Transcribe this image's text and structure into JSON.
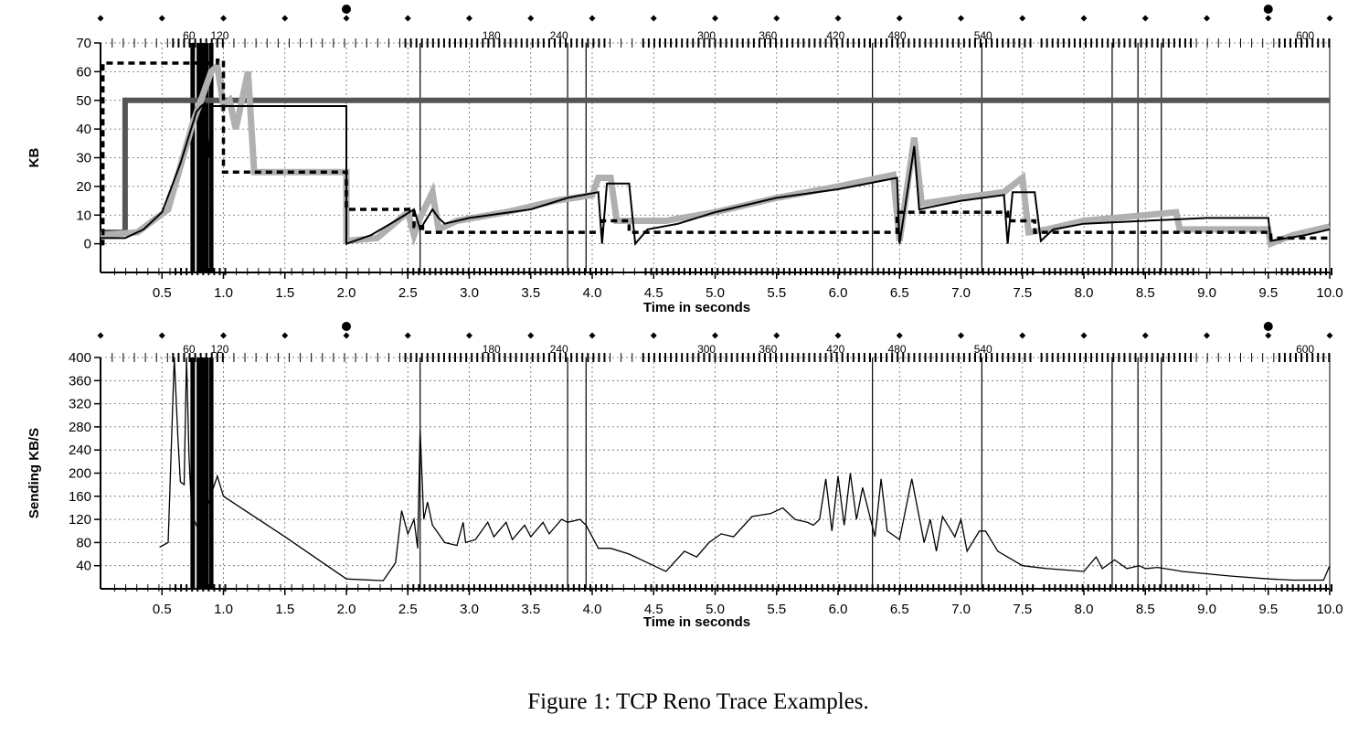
{
  "caption": "Figure 1: TCP Reno Trace Examples.",
  "colors": {
    "cwnd": "#000000",
    "recv_window": "#555555",
    "bytes_in_flight": "#b0b0b0",
    "ssthresh": "#000000",
    "rate": "#000000"
  },
  "chart_data": [
    {
      "type": "line",
      "ylabel": "KB",
      "xlabel": "Time in seconds",
      "xlim": [
        0,
        10
      ],
      "ylim": [
        -10,
        70
      ],
      "grid": true,
      "x_ticks": [
        0.5,
        1.0,
        1.5,
        2.0,
        2.5,
        3.0,
        3.5,
        4.0,
        4.5,
        5.0,
        5.5,
        6.0,
        6.5,
        7.0,
        7.5,
        8.0,
        8.5,
        9.0,
        9.5,
        10.0
      ],
      "x_tick_labels": [
        "0.5",
        "1.0",
        "1.5",
        "2.0",
        "2.5",
        "3.0",
        "3.5",
        "4.0",
        "4.5",
        "5.0",
        "5.5",
        "6.0",
        "6.5",
        "7.0",
        "7.5",
        "8.0",
        "8.5",
        "9.0",
        "9.5",
        "10.0"
      ],
      "y_ticks": [
        0,
        10,
        20,
        30,
        40,
        50,
        60,
        70
      ],
      "y_tick_labels": [
        "0",
        "10",
        "20",
        "30",
        "40",
        "50",
        "60",
        "70"
      ],
      "seq_labels": [
        {
          "x": 0.72,
          "text": "60"
        },
        {
          "x": 0.97,
          "text": "120"
        },
        {
          "x": 3.18,
          "text": "180"
        },
        {
          "x": 3.73,
          "text": "240"
        },
        {
          "x": 4.93,
          "text": "300"
        },
        {
          "x": 5.43,
          "text": "360"
        },
        {
          "x": 5.98,
          "text": "420"
        },
        {
          "x": 6.48,
          "text": "480"
        },
        {
          "x": 7.18,
          "text": "540"
        },
        {
          "x": 9.8,
          "text": "600"
        }
      ],
      "timeout_markers": [
        2.0,
        9.5
      ],
      "loss_lines": [
        0.75,
        0.8,
        0.83,
        0.86,
        0.9,
        2.6,
        3.8,
        3.95,
        6.28,
        7.17,
        8.23,
        8.44,
        8.63
      ],
      "series": [
        {
          "id": "recv_window",
          "x": [
            0,
            0.2,
            0.2,
            10
          ],
          "y": [
            4,
            4,
            50,
            50
          ]
        },
        {
          "id": "bytes_in_flight",
          "x": [
            0,
            0.3,
            0.55,
            0.75,
            0.9,
            0.95,
            1.0,
            1.05,
            1.1,
            1.2,
            1.25,
            2.0,
            2.0,
            2.25,
            2.5,
            2.55,
            2.6,
            2.7,
            2.75,
            2.9,
            3.3,
            3.7,
            4.0,
            4.05,
            4.15,
            4.2,
            4.3,
            4.6,
            5.0,
            5.5,
            6.0,
            6.45,
            6.5,
            6.62,
            6.68,
            7.0,
            7.35,
            7.5,
            7.55,
            7.7,
            8.0,
            8.5,
            8.75,
            8.78,
            9.0,
            9.5,
            9.52,
            9.7,
            10.0
          ],
          "y": [
            3,
            4,
            12,
            42,
            60,
            62,
            48,
            50,
            40,
            60,
            25,
            25,
            1,
            2,
            11,
            3,
            9,
            18,
            5,
            8,
            11,
            15,
            17,
            23,
            23,
            8,
            8,
            8,
            11,
            16,
            20,
            24,
            1,
            37,
            14,
            16,
            18,
            23,
            4,
            5,
            8,
            10,
            11,
            5,
            5,
            5,
            0,
            3,
            6
          ]
        },
        {
          "id": "cwnd",
          "x": [
            0,
            0.2,
            0.35,
            0.5,
            0.65,
            0.78,
            0.82,
            0.85,
            0.88,
            0.9,
            1.05,
            1.1,
            1.3,
            2.0,
            2.0,
            2.2,
            2.4,
            2.55,
            2.6,
            2.7,
            2.75,
            2.8,
            3.0,
            3.5,
            3.8,
            4.05,
            4.08,
            4.12,
            4.3,
            4.35,
            4.45,
            4.7,
            5.0,
            5.5,
            6.0,
            6.48,
            6.5,
            6.62,
            6.66,
            7.0,
            7.35,
            7.38,
            7.42,
            7.6,
            7.65,
            7.75,
            8.0,
            8.5,
            9.0,
            9.5,
            9.52,
            9.8,
            10.0
          ],
          "y": [
            2,
            2,
            5,
            11,
            28,
            46,
            48,
            49,
            30,
            48,
            48,
            48,
            48,
            48,
            0,
            3,
            8,
            12,
            5,
            12,
            9,
            7,
            9,
            12,
            16,
            18,
            0,
            21,
            21,
            0,
            5,
            7,
            11,
            16,
            19,
            23,
            0,
            34,
            12,
            15,
            17,
            0,
            18,
            18,
            1,
            5,
            7,
            8,
            9,
            9,
            1,
            3,
            5
          ]
        },
        {
          "id": "ssthresh",
          "style": "dashed",
          "x": [
            0,
            0.02,
            0.02,
            0.95,
            0.95,
            1.0,
            1.0,
            1.03,
            1.03,
            2.0,
            2.0,
            2.55,
            2.55,
            2.62,
            2.62,
            4.08,
            4.08,
            4.3,
            4.3,
            6.48,
            6.48,
            7.38,
            7.38,
            7.6,
            7.6,
            9.52,
            9.52,
            10.0
          ],
          "y": [
            0,
            0,
            63,
            63,
            64,
            64,
            25,
            25,
            25,
            25,
            12,
            12,
            6,
            6,
            4,
            4,
            8,
            8,
            4,
            4,
            11,
            11,
            8,
            8,
            4,
            4,
            2,
            2
          ]
        }
      ]
    },
    {
      "type": "line",
      "ylabel": "Sending KB/S",
      "xlabel": "Time in seconds",
      "xlim": [
        0,
        10
      ],
      "ylim": [
        0,
        400
      ],
      "grid": true,
      "x_ticks": [
        0.5,
        1.0,
        1.5,
        2.0,
        2.5,
        3.0,
        3.5,
        4.0,
        4.5,
        5.0,
        5.5,
        6.0,
        6.5,
        7.0,
        7.5,
        8.0,
        8.5,
        9.0,
        9.5,
        10.0
      ],
      "x_tick_labels": [
        "0.5",
        "1.0",
        "1.5",
        "2.0",
        "2.5",
        "3.0",
        "3.5",
        "4.0",
        "4.5",
        "5.0",
        "5.5",
        "6.0",
        "6.5",
        "7.0",
        "7.5",
        "8.0",
        "8.5",
        "9.0",
        "9.5",
        "10.0"
      ],
      "y_ticks": [
        40,
        80,
        120,
        160,
        200,
        240,
        280,
        320,
        360,
        400
      ],
      "y_tick_labels": [
        "40",
        "80",
        "120",
        "160",
        "200",
        "240",
        "280",
        "320",
        "360",
        "400"
      ],
      "seq_labels": [
        {
          "x": 0.72,
          "text": "60"
        },
        {
          "x": 0.97,
          "text": "120"
        },
        {
          "x": 3.18,
          "text": "180"
        },
        {
          "x": 3.73,
          "text": "240"
        },
        {
          "x": 4.93,
          "text": "300"
        },
        {
          "x": 5.43,
          "text": "360"
        },
        {
          "x": 5.98,
          "text": "420"
        },
        {
          "x": 6.48,
          "text": "480"
        },
        {
          "x": 7.18,
          "text": "540"
        },
        {
          "x": 9.8,
          "text": "600"
        }
      ],
      "timeout_markers": [
        2.0,
        9.5
      ],
      "loss_lines": [
        0.75,
        0.8,
        0.83,
        0.86,
        0.9,
        2.6,
        3.8,
        3.95,
        6.28,
        7.17,
        8.23,
        8.44,
        8.63
      ],
      "series": [
        {
          "id": "rate",
          "x": [
            0.48,
            0.55,
            0.6,
            0.63,
            0.65,
            0.68,
            0.7,
            0.72,
            0.74,
            0.76,
            0.8,
            0.95,
            1.0,
            1.5,
            2.0,
            2.3,
            2.4,
            2.45,
            2.5,
            2.55,
            2.58,
            2.6,
            2.63,
            2.66,
            2.7,
            2.8,
            2.9,
            2.95,
            2.97,
            3.05,
            3.15,
            3.2,
            3.3,
            3.35,
            3.45,
            3.5,
            3.6,
            3.65,
            3.75,
            3.8,
            3.9,
            3.95,
            4.05,
            4.15,
            4.3,
            4.5,
            4.6,
            4.75,
            4.85,
            4.95,
            5.05,
            5.15,
            5.3,
            5.45,
            5.55,
            5.65,
            5.75,
            5.8,
            5.85,
            5.9,
            5.95,
            6.0,
            6.05,
            6.1,
            6.15,
            6.2,
            6.3,
            6.35,
            6.4,
            6.5,
            6.6,
            6.7,
            6.75,
            6.8,
            6.85,
            6.95,
            7.0,
            7.05,
            7.15,
            7.2,
            7.3,
            7.5,
            7.7,
            8.0,
            8.1,
            8.15,
            8.25,
            8.35,
            8.45,
            8.5,
            8.6,
            8.8,
            9.0,
            9.2,
            9.5,
            9.7,
            9.95,
            10.0
          ],
          "y": [
            72,
            80,
            400,
            260,
            185,
            180,
            400,
            230,
            140,
            120,
            100,
            195,
            160,
            90,
            17,
            14,
            45,
            135,
            95,
            120,
            70,
            275,
            120,
            150,
            110,
            80,
            75,
            115,
            80,
            85,
            115,
            90,
            115,
            85,
            110,
            90,
            115,
            95,
            120,
            115,
            120,
            110,
            70,
            70,
            60,
            40,
            30,
            65,
            55,
            80,
            95,
            90,
            125,
            130,
            140,
            120,
            115,
            110,
            120,
            190,
            100,
            195,
            110,
            200,
            120,
            175,
            90,
            190,
            100,
            85,
            190,
            80,
            120,
            65,
            125,
            90,
            120,
            65,
            100,
            100,
            65,
            40,
            35,
            30,
            55,
            35,
            50,
            35,
            40,
            35,
            37,
            30,
            26,
            22,
            17,
            15,
            15,
            40
          ]
        }
      ]
    }
  ]
}
